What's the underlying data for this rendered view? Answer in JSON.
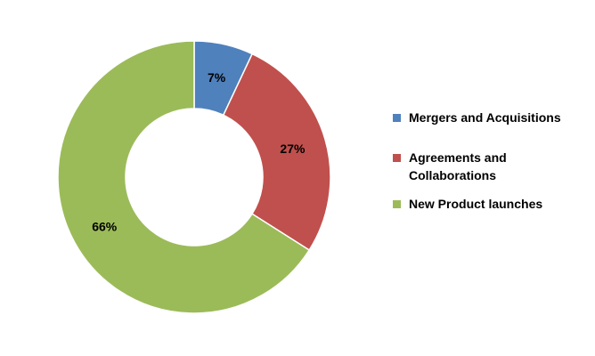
{
  "chart_data": {
    "type": "pie",
    "donut": true,
    "title": "",
    "legend_position": "right",
    "slices": [
      {
        "label": "Mergers and Acquisitions",
        "value": 7,
        "display": "7%",
        "color": "#4F81BD"
      },
      {
        "label": "Agreements and Collaborations",
        "value": 27,
        "display": "27%",
        "color": "#C0504D"
      },
      {
        "label": "New Product launches",
        "value": 66,
        "display": "66%",
        "color": "#9BBB59"
      }
    ]
  },
  "legend": {
    "items": [
      {
        "label": "Mergers and Acquisitions",
        "color": "#4F81BD"
      },
      {
        "label": "Agreements and Collaborations",
        "color": "#C0504D"
      },
      {
        "label": "New Product launches",
        "color": "#9BBB59"
      }
    ]
  }
}
